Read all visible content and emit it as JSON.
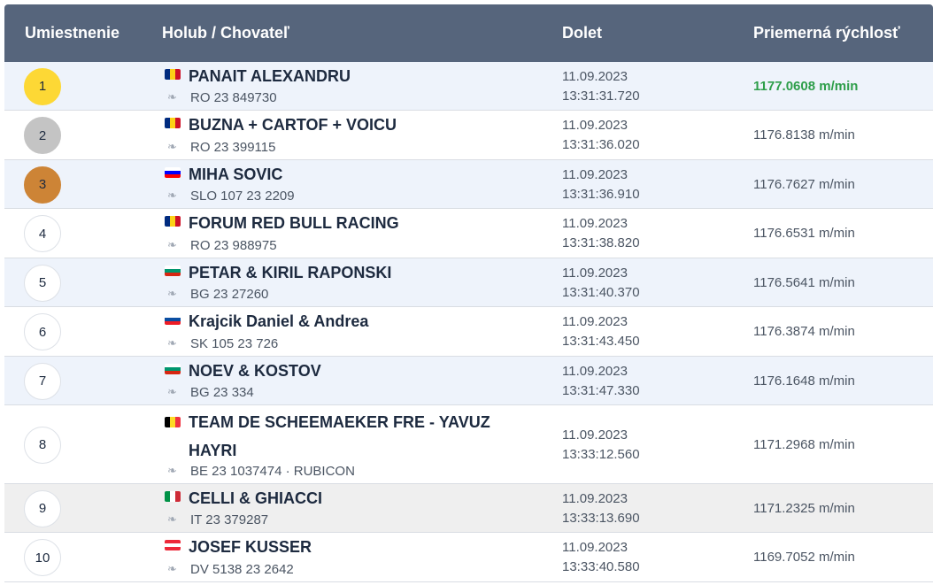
{
  "header": {
    "place": "Umiestnenie",
    "pigeon": "Holub / Chovateľ",
    "dolet": "Dolet",
    "speed": "Priemerná rýchlosť"
  },
  "rows": [
    {
      "place": "1",
      "name": "PANAIT ALEXANDRU",
      "flag": "RO",
      "ring": "RO 23 849730",
      "date": "11.09.2023",
      "time": "13:31:31.720",
      "speed": "1177.0608 m/min"
    },
    {
      "place": "2",
      "name": "BUZNA + CARTOF + VOICU",
      "flag": "RO",
      "ring": "RO 23 399115",
      "date": "11.09.2023",
      "time": "13:31:36.020",
      "speed": "1176.8138 m/min"
    },
    {
      "place": "3",
      "name": "MIHA SOVIC",
      "flag": "SI",
      "ring": "SLO 107 23 2209",
      "date": "11.09.2023",
      "time": "13:31:36.910",
      "speed": "1176.7627 m/min"
    },
    {
      "place": "4",
      "name": "FORUM RED BULL RACING",
      "flag": "RO",
      "ring": "RO 23 988975",
      "date": "11.09.2023",
      "time": "13:31:38.820",
      "speed": "1176.6531 m/min"
    },
    {
      "place": "5",
      "name": "PETAR & KIRIL RAPONSKI",
      "flag": "BG",
      "ring": "BG 23 27260",
      "date": "11.09.2023",
      "time": "13:31:40.370",
      "speed": "1176.5641 m/min"
    },
    {
      "place": "6",
      "name": "Krajcik Daniel & Andrea",
      "flag": "SK",
      "ring": "SK 105 23 726",
      "date": "11.09.2023",
      "time": "13:31:43.450",
      "speed": "1176.3874 m/min"
    },
    {
      "place": "7",
      "name": "NOEV & KOSTOV",
      "flag": "BG",
      "ring": "BG 23 334",
      "date": "11.09.2023",
      "time": "13:31:47.330",
      "speed": "1176.1648 m/min"
    },
    {
      "place": "8",
      "name": "TEAM DE SCHEEMAEKER FRE - YAVUZ HAYRI",
      "flag": "BE",
      "ring": "BE 23 1037474  ·  RUBICON",
      "date": "11.09.2023",
      "time": "13:33:12.560",
      "speed": "1171.2968 m/min"
    },
    {
      "place": "9",
      "name": "CELLI & GHIACCI",
      "flag": "IT",
      "ring": "IT 23 379287",
      "date": "11.09.2023",
      "time": "13:33:13.690",
      "speed": "1171.2325 m/min"
    },
    {
      "place": "10",
      "name": "JOSEF KUSSER",
      "flag": "AT",
      "ring": "DV 5138 23 2642",
      "date": "11.09.2023",
      "time": "13:33:40.580",
      "speed": "1169.7052 m/min"
    }
  ],
  "colors": {
    "header_bg": "#56657c",
    "gold": "#fdd835",
    "silver": "#c4c4c4",
    "bronze": "#cd8436",
    "best_speed": "#2e9e4a",
    "row_alt": "#eef3fb"
  },
  "icons": {
    "ring": "pigeon-icon"
  }
}
